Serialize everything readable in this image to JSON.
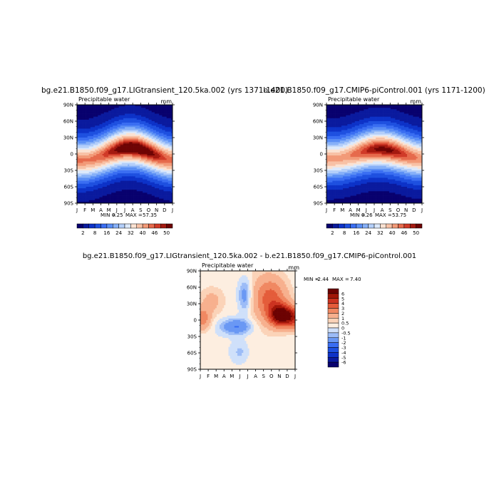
{
  "chart_data": [
    {
      "type": "heatmap",
      "title": "bg.e21.B1850.f09_g17.LIGtransient_120.5ka.002 (yrs 1371-1400)",
      "subtitle": "Precipitable water",
      "units": "mm",
      "x": [
        "J",
        "F",
        "M",
        "A",
        "M",
        "J",
        "J",
        "A",
        "S",
        "O",
        "N",
        "D",
        "J"
      ],
      "y_ticks": [
        "90N",
        "60N",
        "30N",
        "0",
        "30S",
        "60S",
        "90S"
      ],
      "stats": {
        "min_label": "MIN =",
        "min": "0.25",
        "max_label": "MAX =",
        "max": "57.35"
      },
      "field": {
        "equator_peak_max": 54,
        "peak_lat_shift_deg": 12,
        "pole_min": 1
      },
      "colorbar": {
        "levels": [
          2,
          5,
          8,
          12,
          16,
          20,
          24,
          28,
          32,
          36,
          40,
          43,
          46,
          48,
          50
        ],
        "labels": [
          "2",
          "8",
          "16",
          "24",
          "32",
          "40",
          "46",
          "50"
        ],
        "colors": [
          "#08016e",
          "#0a1a9e",
          "#0d32c8",
          "#1e50e0",
          "#3a6ef2",
          "#5a8ef5",
          "#86b0f8",
          "#b4cffa",
          "#dce9fb",
          "#fbe2d2",
          "#f8c1a5",
          "#f29a78",
          "#e66a4c",
          "#d03a28",
          "#a41a10",
          "#6e0404"
        ]
      }
    },
    {
      "type": "heatmap",
      "title": "b.e21.B1850.f09_g17.CMIP6-piControl.001 (yrs 1171-1200)",
      "subtitle": "Precipitable water",
      "units": "mm",
      "x": [
        "J",
        "F",
        "M",
        "A",
        "M",
        "J",
        "J",
        "A",
        "S",
        "O",
        "N",
        "D",
        "J"
      ],
      "y_ticks": [
        "90N",
        "60N",
        "30N",
        "0",
        "30S",
        "60S",
        "90S"
      ],
      "stats": {
        "min_label": "MIN =",
        "min": "0.26",
        "max_label": "MAX =",
        "max": "53.75"
      },
      "field": {
        "equator_peak_max": 51,
        "peak_lat_shift_deg": 9,
        "pole_min": 1
      },
      "colorbar": {
        "levels": [
          2,
          5,
          8,
          12,
          16,
          20,
          24,
          28,
          32,
          36,
          40,
          43,
          46,
          48,
          50
        ],
        "labels": [
          "2",
          "8",
          "16",
          "24",
          "32",
          "40",
          "46",
          "50"
        ],
        "colors": [
          "#08016e",
          "#0a1a9e",
          "#0d32c8",
          "#1e50e0",
          "#3a6ef2",
          "#5a8ef5",
          "#86b0f8",
          "#b4cffa",
          "#dce9fb",
          "#fbe2d2",
          "#f8c1a5",
          "#f29a78",
          "#e66a4c",
          "#d03a28",
          "#a41a10",
          "#6e0404"
        ]
      }
    },
    {
      "type": "heatmap",
      "title": "bg.e21.B1850.f09_g17.LIGtransient_120.5ka.002 - b.e21.B1850.f09_g17.CMIP6-piControl.001",
      "subtitle": "Precipitable water",
      "units": "mm",
      "x": [
        "J",
        "F",
        "M",
        "A",
        "M",
        "J",
        "J",
        "A",
        "S",
        "O",
        "N",
        "D",
        "J"
      ],
      "y_ticks": [
        "90N",
        "60N",
        "30N",
        "0",
        "30S",
        "60S",
        "90S"
      ],
      "stats": {
        "min_label": "MIN =",
        "min": "-2.44",
        "max_label": "MAX =",
        "max": "7.40"
      },
      "colorbar": {
        "levels": [
          -6,
          -5,
          -4,
          -3,
          -2,
          -1,
          -0.5,
          0,
          0.5,
          1,
          2,
          3,
          4,
          5,
          6
        ],
        "labels": [
          "6",
          "5",
          "4",
          "3",
          "2",
          "1",
          "0.5",
          "0",
          "-0.5",
          "-1",
          "-2",
          "-3",
          "-4",
          "-5",
          "-6"
        ],
        "colors": [
          "#08016e",
          "#0a1a9e",
          "#0d32c8",
          "#1e50e0",
          "#3a6ef2",
          "#6a98f4",
          "#9cbcf7",
          "#cfe0fa",
          "#fdeee0",
          "#fbd3b8",
          "#f7b08e",
          "#f08862",
          "#e45c3a",
          "#cc3320",
          "#a01608",
          "#6c0202"
        ]
      }
    }
  ]
}
